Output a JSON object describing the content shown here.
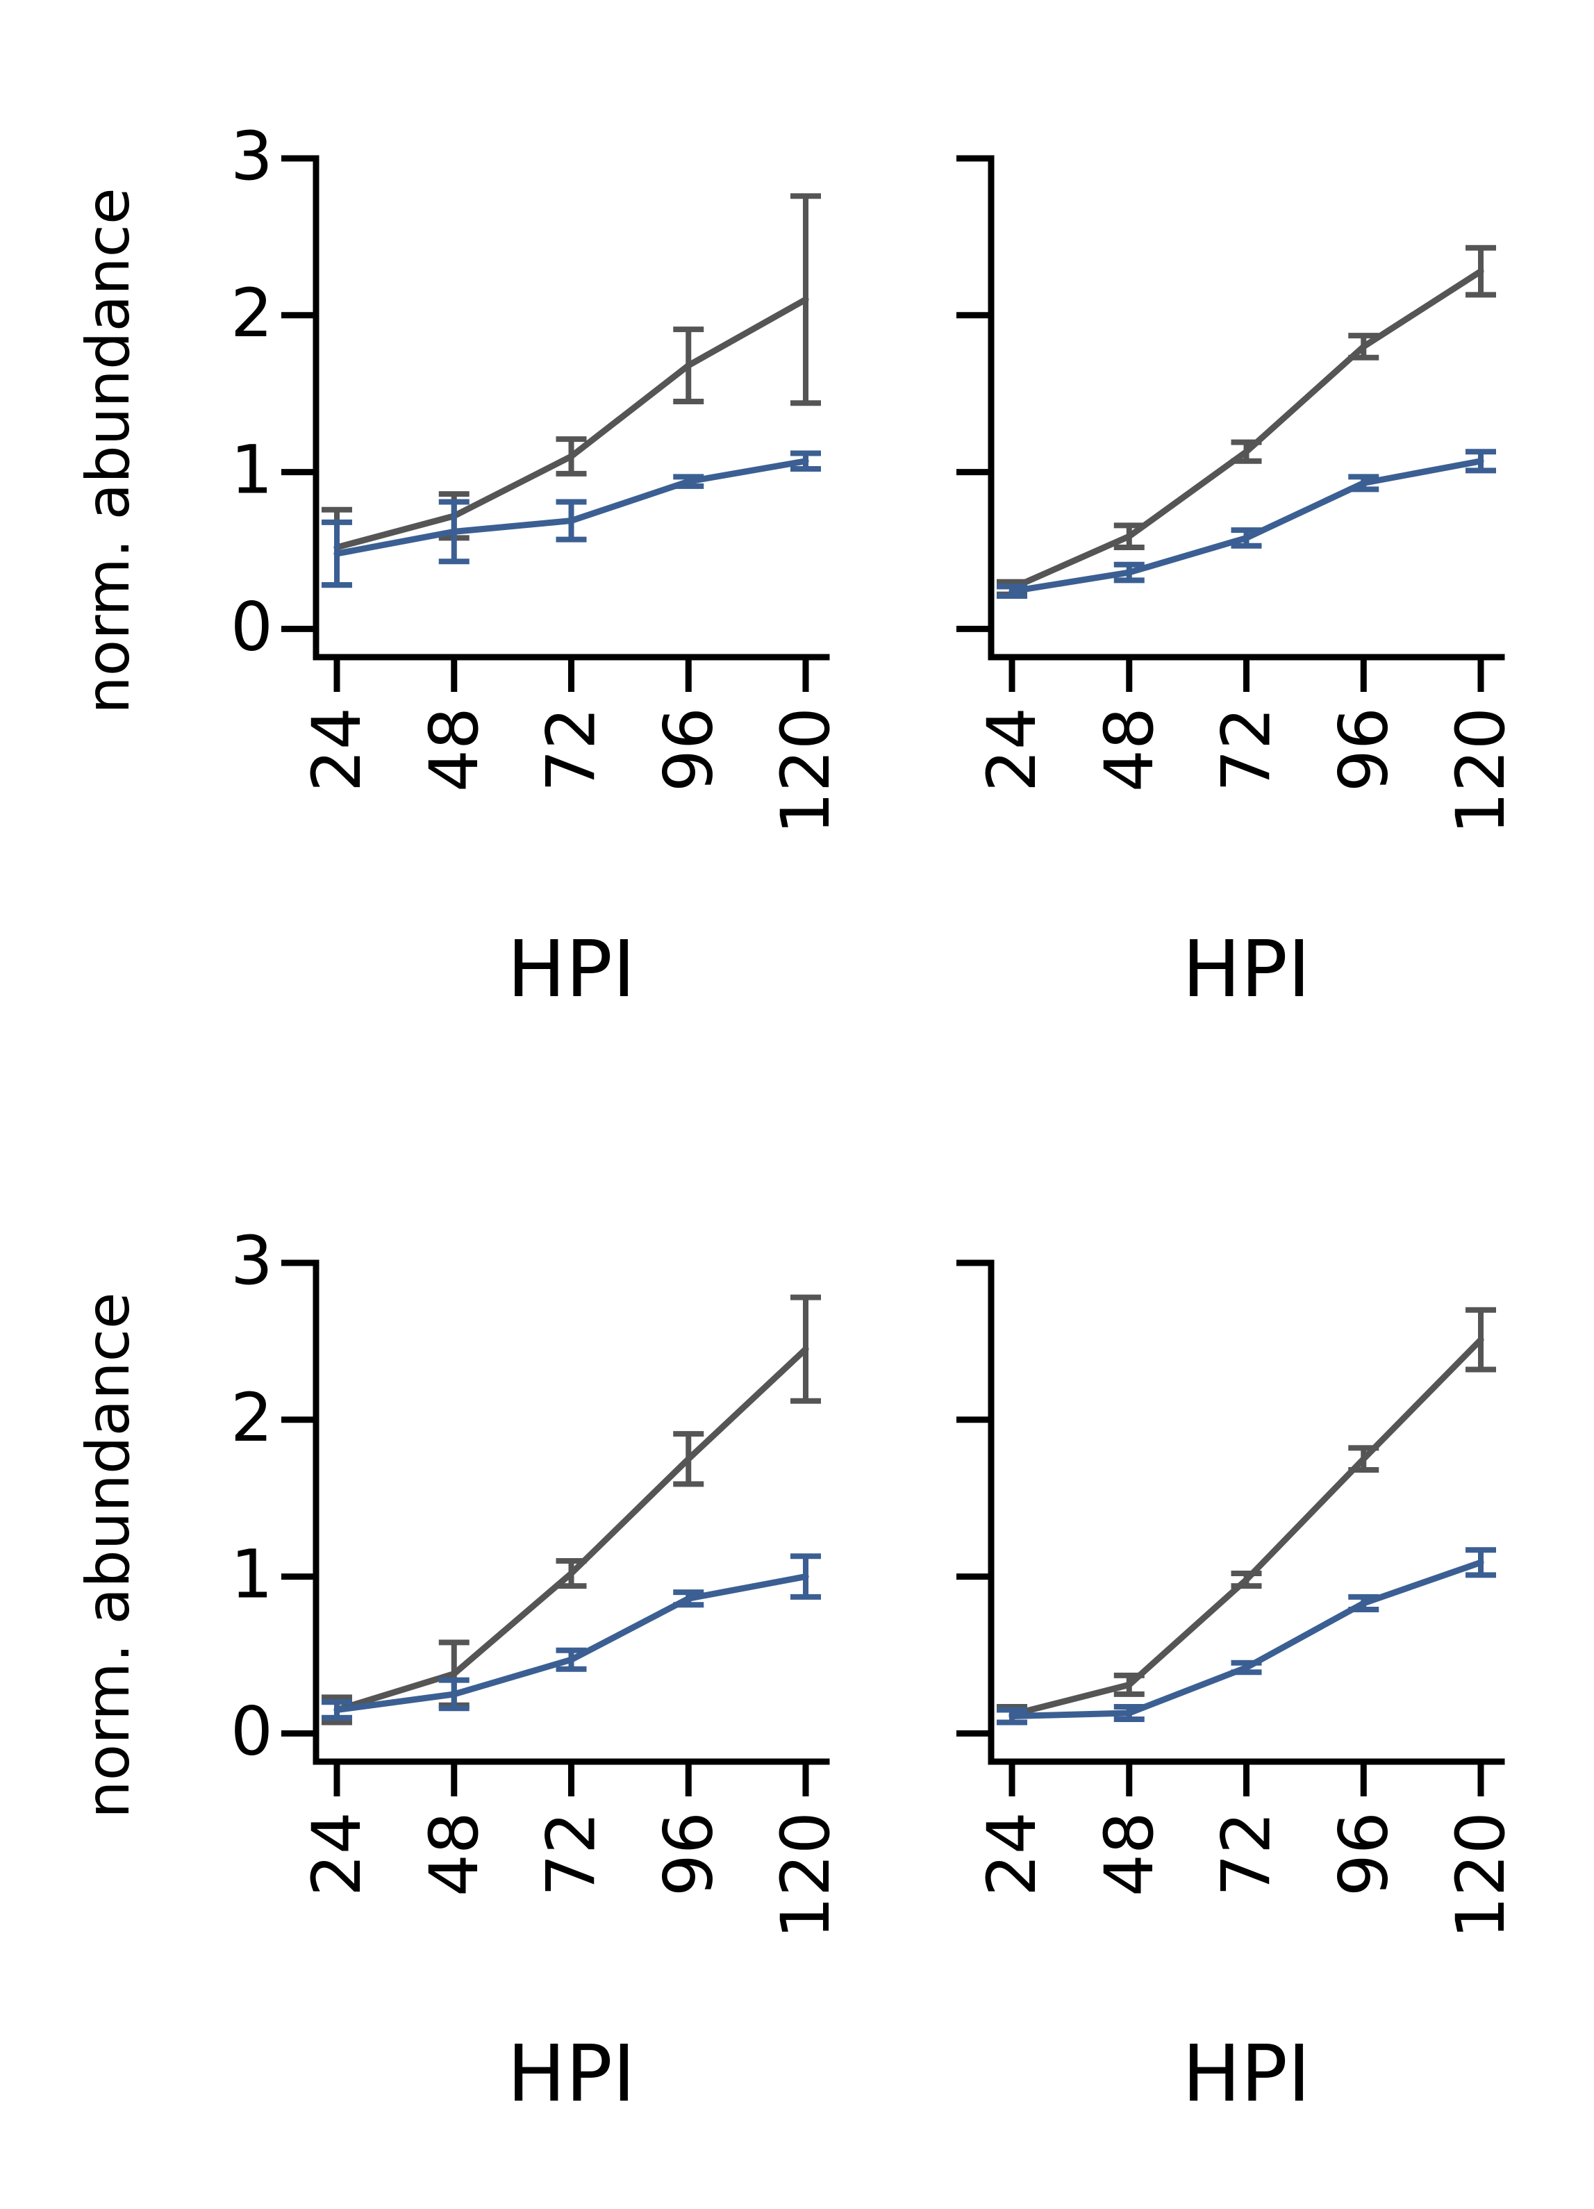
{
  "colors": {
    "axis": "#000000",
    "series_gray": "#555555",
    "series_blue": "#3b5f93"
  },
  "chart_data": [
    {
      "type": "line",
      "panel": "top-left",
      "xlabel": "HPI",
      "ylabel": "norm. abundance",
      "categories": [
        "24",
        "48",
        "72",
        "96",
        "120"
      ],
      "yticks": [
        "0",
        "1",
        "2",
        "3"
      ],
      "ylim": [
        -0.18,
        3.0
      ],
      "grid": false,
      "legend": "none",
      "series": [
        {
          "color": "#555555",
          "values": [
            0.52,
            0.72,
            1.1,
            1.68,
            2.1
          ],
          "err": [
            0.24,
            0.14,
            0.11,
            0.23,
            0.66
          ]
        },
        {
          "color": "#3b5f93",
          "values": [
            0.48,
            0.62,
            0.69,
            0.94,
            1.07
          ],
          "err": [
            0.2,
            0.19,
            0.12,
            0.03,
            0.05
          ]
        }
      ]
    },
    {
      "type": "line",
      "panel": "top-right",
      "xlabel": "HPI",
      "ylabel": "",
      "categories": [
        "24",
        "48",
        "72",
        "96",
        "120"
      ],
      "yticks": [
        "",
        "",
        "",
        ""
      ],
      "ylim": [
        -0.18,
        3.0
      ],
      "grid": false,
      "legend": "none",
      "series": [
        {
          "color": "#555555",
          "values": [
            0.26,
            0.59,
            1.13,
            1.8,
            2.28
          ],
          "err": [
            0.04,
            0.07,
            0.06,
            0.07,
            0.15
          ]
        },
        {
          "color": "#3b5f93",
          "values": [
            0.24,
            0.36,
            0.58,
            0.93,
            1.07
          ],
          "err": [
            0.03,
            0.05,
            0.05,
            0.04,
            0.06
          ]
        }
      ]
    },
    {
      "type": "line",
      "panel": "bottom-left",
      "xlabel": "HPI",
      "ylabel": "norm. abundance",
      "categories": [
        "24",
        "48",
        "72",
        "96",
        "120"
      ],
      "yticks": [
        "0",
        "1",
        "2",
        "3"
      ],
      "ylim": [
        -0.18,
        3.0
      ],
      "grid": false,
      "legend": "none",
      "series": [
        {
          "color": "#555555",
          "values": [
            0.15,
            0.38,
            1.02,
            1.75,
            2.45
          ],
          "err": [
            0.08,
            0.2,
            0.08,
            0.16,
            0.33
          ]
        },
        {
          "color": "#3b5f93",
          "values": [
            0.15,
            0.25,
            0.47,
            0.86,
            1.0
          ],
          "err": [
            0.05,
            0.09,
            0.06,
            0.04,
            0.13
          ]
        }
      ]
    },
    {
      "type": "line",
      "panel": "bottom-right",
      "xlabel": "HPI",
      "ylabel": "",
      "categories": [
        "24",
        "48",
        "72",
        "96",
        "120"
      ],
      "yticks": [
        "",
        "",
        "",
        ""
      ],
      "ylim": [
        -0.18,
        3.0
      ],
      "grid": false,
      "legend": "none",
      "series": [
        {
          "color": "#555555",
          "values": [
            0.12,
            0.31,
            0.98,
            1.75,
            2.51
          ],
          "err": [
            0.05,
            0.06,
            0.04,
            0.07,
            0.19
          ]
        },
        {
          "color": "#3b5f93",
          "values": [
            0.11,
            0.13,
            0.42,
            0.83,
            1.09
          ],
          "err": [
            0.04,
            0.04,
            0.03,
            0.04,
            0.08
          ]
        }
      ]
    }
  ]
}
